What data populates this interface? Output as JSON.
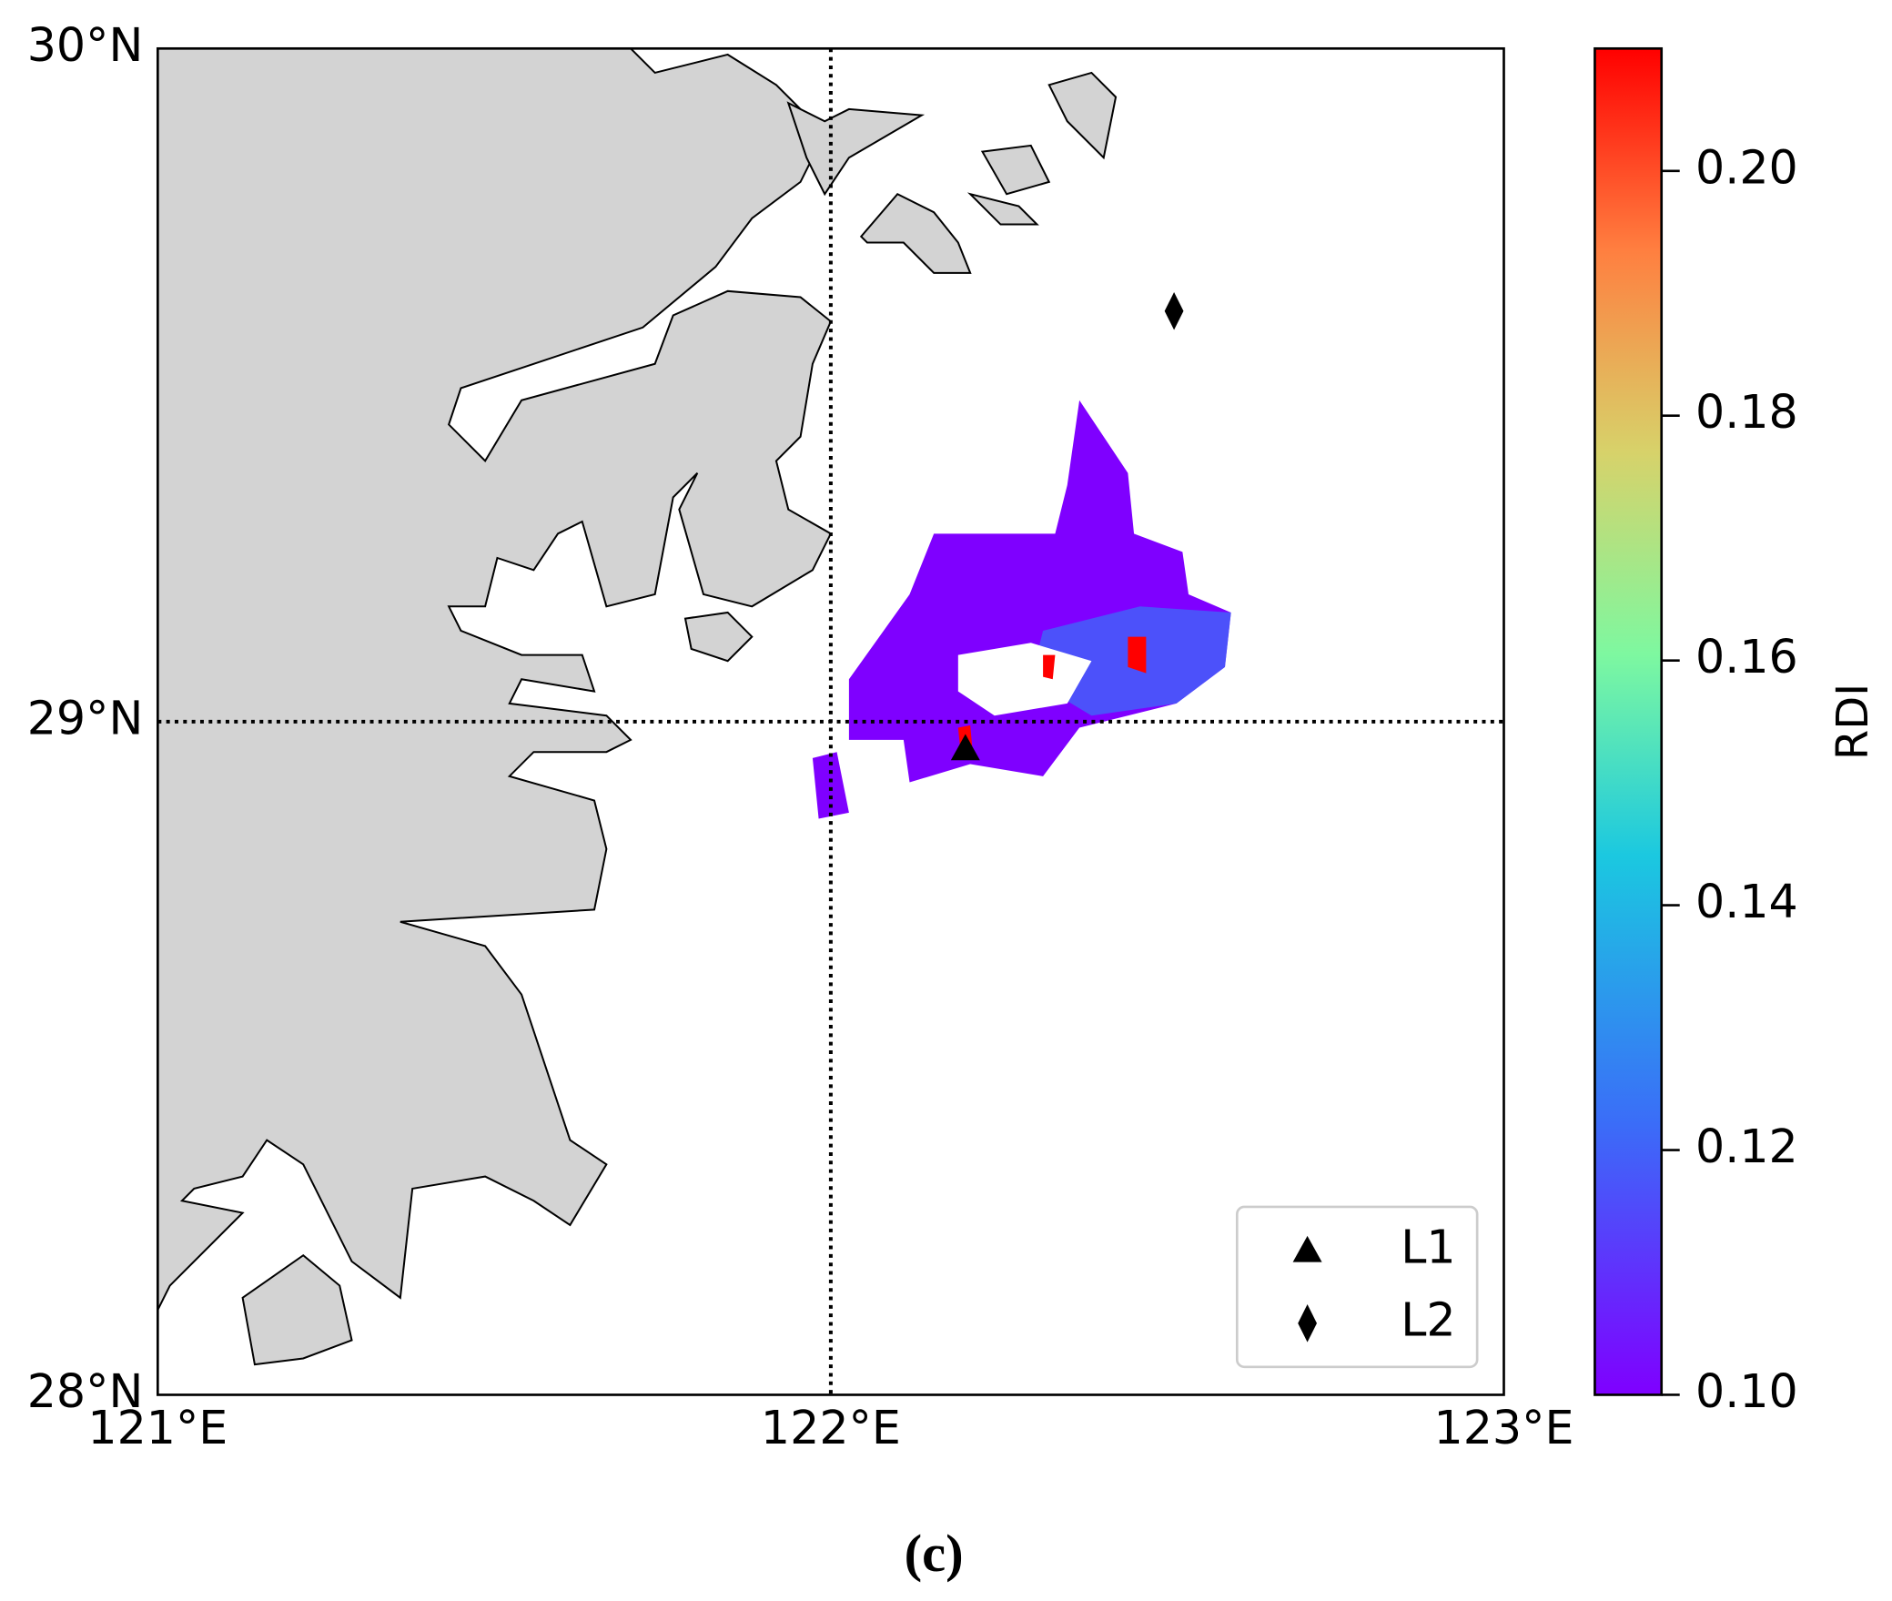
{
  "chart_data": {
    "type": "map",
    "xlim": [
      121,
      123
    ],
    "ylim": [
      28,
      30
    ],
    "xticks": [
      {
        "value": 121,
        "label": "121°E"
      },
      {
        "value": 122,
        "label": "122°E"
      },
      {
        "value": 123,
        "label": "123°E"
      }
    ],
    "yticks": [
      {
        "value": 28,
        "label": "28°N"
      },
      {
        "value": 29,
        "label": "29°N"
      },
      {
        "value": 30,
        "label": "30°N"
      }
    ],
    "grid": true,
    "series": [
      {
        "name": "L1",
        "marker": "triangle",
        "color": "#000000",
        "x": [
          122.2
        ],
        "values": [
          28.96
        ]
      },
      {
        "name": "L2",
        "marker": "diamond",
        "color": "#000000",
        "x": [
          122.51
        ],
        "values": [
          29.61
        ]
      }
    ],
    "legend": "lower right",
    "colorbar": {
      "label": "RDI",
      "clim": [
        0.1,
        0.21
      ],
      "ticks": [
        {
          "value": 0.1,
          "label": "0.10"
        },
        {
          "value": 0.12,
          "label": "0.12"
        },
        {
          "value": 0.14,
          "label": "0.14"
        },
        {
          "value": 0.16,
          "label": "0.16"
        },
        {
          "value": 0.18,
          "label": "0.18"
        },
        {
          "value": 0.2,
          "label": "0.20"
        }
      ]
    },
    "caption": "(c)"
  }
}
